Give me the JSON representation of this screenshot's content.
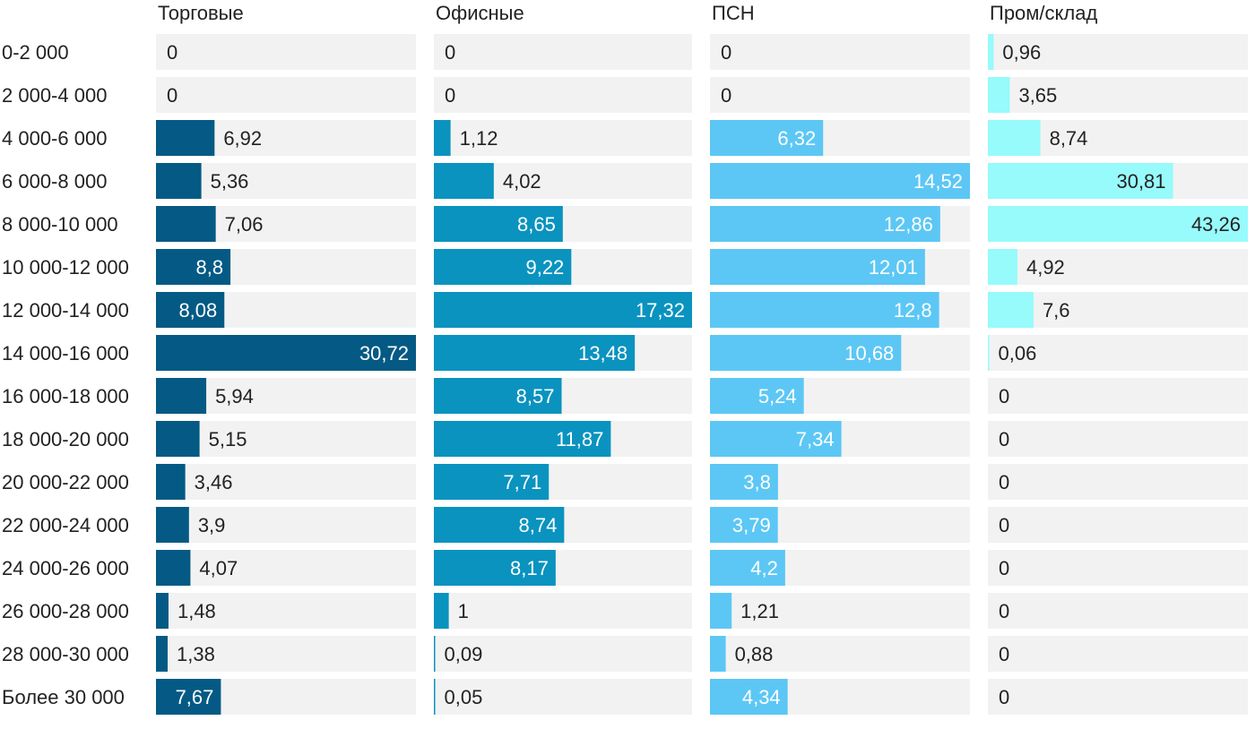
{
  "chart_data": {
    "type": "bar",
    "orientation": "horizontal",
    "layout": "small-multiples",
    "title": "",
    "categories": [
      "0-2 000",
      "2 000-4 000",
      "4 000-6 000",
      "6 000-8 000",
      "8 000-10 000",
      "10 000-12 000",
      "12 000-14 000",
      "14 000-16 000",
      "16 000-18 000",
      "18 000-20 000",
      "20 000-22 000",
      "22 000-24 000",
      "24 000-26 000",
      "26 000-28 000",
      "28 000-30 000",
      "Более 30 000"
    ],
    "series": [
      {
        "name": "Торговые",
        "color": "#045a84",
        "values": [
          0,
          0,
          6.92,
          5.36,
          7.06,
          8.8,
          8.08,
          30.72,
          5.94,
          5.15,
          3.46,
          3.9,
          4.07,
          1.48,
          1.38,
          7.67
        ],
        "labels": [
          "0",
          "0",
          "6,92",
          "5,36",
          "7,06",
          "8,8",
          "8,08",
          "30,72",
          "5,94",
          "5,15",
          "3,46",
          "3,9",
          "4,07",
          "1,48",
          "1,38",
          "7,67"
        ]
      },
      {
        "name": "Офисные",
        "color": "#0a93bf",
        "values": [
          0,
          0,
          1.12,
          4.02,
          8.65,
          9.22,
          17.32,
          13.48,
          8.57,
          11.87,
          7.71,
          8.74,
          8.17,
          1,
          0.09,
          0.05
        ],
        "labels": [
          "0",
          "0",
          "1,12",
          "4,02",
          "8,65",
          "9,22",
          "17,32",
          "13,48",
          "8,57",
          "11,87",
          "7,71",
          "8,74",
          "8,17",
          "1",
          "0,09",
          "0,05"
        ]
      },
      {
        "name": "ПСН",
        "color": "#5cc7f5",
        "values": [
          0,
          0,
          6.32,
          14.52,
          12.86,
          12.01,
          12.8,
          10.68,
          5.24,
          7.34,
          3.8,
          3.79,
          4.2,
          1.21,
          0.88,
          4.34
        ],
        "labels": [
          "0",
          "0",
          "6,32",
          "14,52",
          "12,86",
          "12,01",
          "12,8",
          "10,68",
          "5,24",
          "7,34",
          "3,8",
          "3,79",
          "4,2",
          "1,21",
          "0,88",
          "4,34"
        ]
      },
      {
        "name": "Пром/склад",
        "color": "#97fafb",
        "values": [
          0.96,
          3.65,
          8.74,
          30.81,
          43.26,
          4.92,
          7.6,
          0.06,
          0,
          0,
          0,
          0,
          0,
          0,
          0,
          0
        ],
        "labels": [
          "0,96",
          "3,65",
          "8,74",
          "30,81",
          "43,26",
          "4,92",
          "7,6",
          "0,06",
          "0",
          "0",
          "0",
          "0",
          "0",
          "0",
          "0",
          "0"
        ]
      }
    ],
    "xlim_per_series": [
      [
        0,
        30.72
      ],
      [
        0,
        17.32
      ],
      [
        0,
        14.52
      ],
      [
        0,
        43.26
      ]
    ],
    "track_color": "#f2f2f2",
    "label_color_inside": "#ffffff",
    "label_color_inside_light": "#222222",
    "label_color_outside": "#222222",
    "grid": false,
    "legend": "none"
  }
}
